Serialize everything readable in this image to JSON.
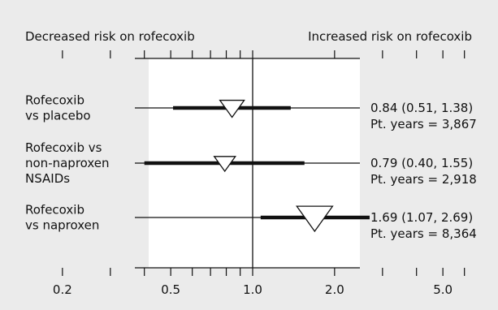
{
  "chart_data": {
    "type": "forest",
    "x_scale": "log",
    "xlim": [
      0.08,
      7.0
    ],
    "reference_value": 1.0,
    "x_ticks": [
      {
        "value": 0.2,
        "label": "0.2"
      },
      {
        "value": 0.5,
        "label": "0.5"
      },
      {
        "value": 1.0,
        "label": "1.0"
      },
      {
        "value": 2.0,
        "label": "2.0"
      },
      {
        "value": 5.0,
        "label": "5.0"
      }
    ],
    "x_minor_ticks": [
      0.1,
      0.2,
      0.3,
      0.4,
      0.5,
      0.6,
      0.7,
      0.8,
      0.9,
      1.0,
      2.0,
      3.0,
      4.0,
      5.0,
      6.0
    ],
    "left_header": "Decreased risk on rofecoxib",
    "right_header": "Increased risk on rofecoxib",
    "rows": [
      {
        "label_lines": [
          "Rofecoxib",
          "vs placebo"
        ],
        "estimate": 0.84,
        "ci_low": 0.51,
        "ci_high": 1.38,
        "stat_text": "0.84 (0.51, 1.38)",
        "pt_years_text": "Pt. years = 3,867",
        "pt_years": 3867
      },
      {
        "label_lines": [
          "Rofecoxib vs",
          "non-naproxen",
          "NSAIDs"
        ],
        "estimate": 0.79,
        "ci_low": 0.4,
        "ci_high": 1.55,
        "stat_text": "0.79 (0.40, 1.55)",
        "pt_years_text": "Pt. years = 2,918",
        "pt_years": 2918
      },
      {
        "label_lines": [
          "Rofecoxib",
          "vs naproxen"
        ],
        "estimate": 1.69,
        "ci_low": 1.07,
        "ci_high": 2.69,
        "stat_text": "1.69 (1.07, 2.69)",
        "pt_years_text": "Pt. years = 8,364",
        "pt_years": 8364
      }
    ],
    "colors": {
      "background": "#ebebeb",
      "plot_area": "#ffffff",
      "ink": "#111111"
    }
  }
}
